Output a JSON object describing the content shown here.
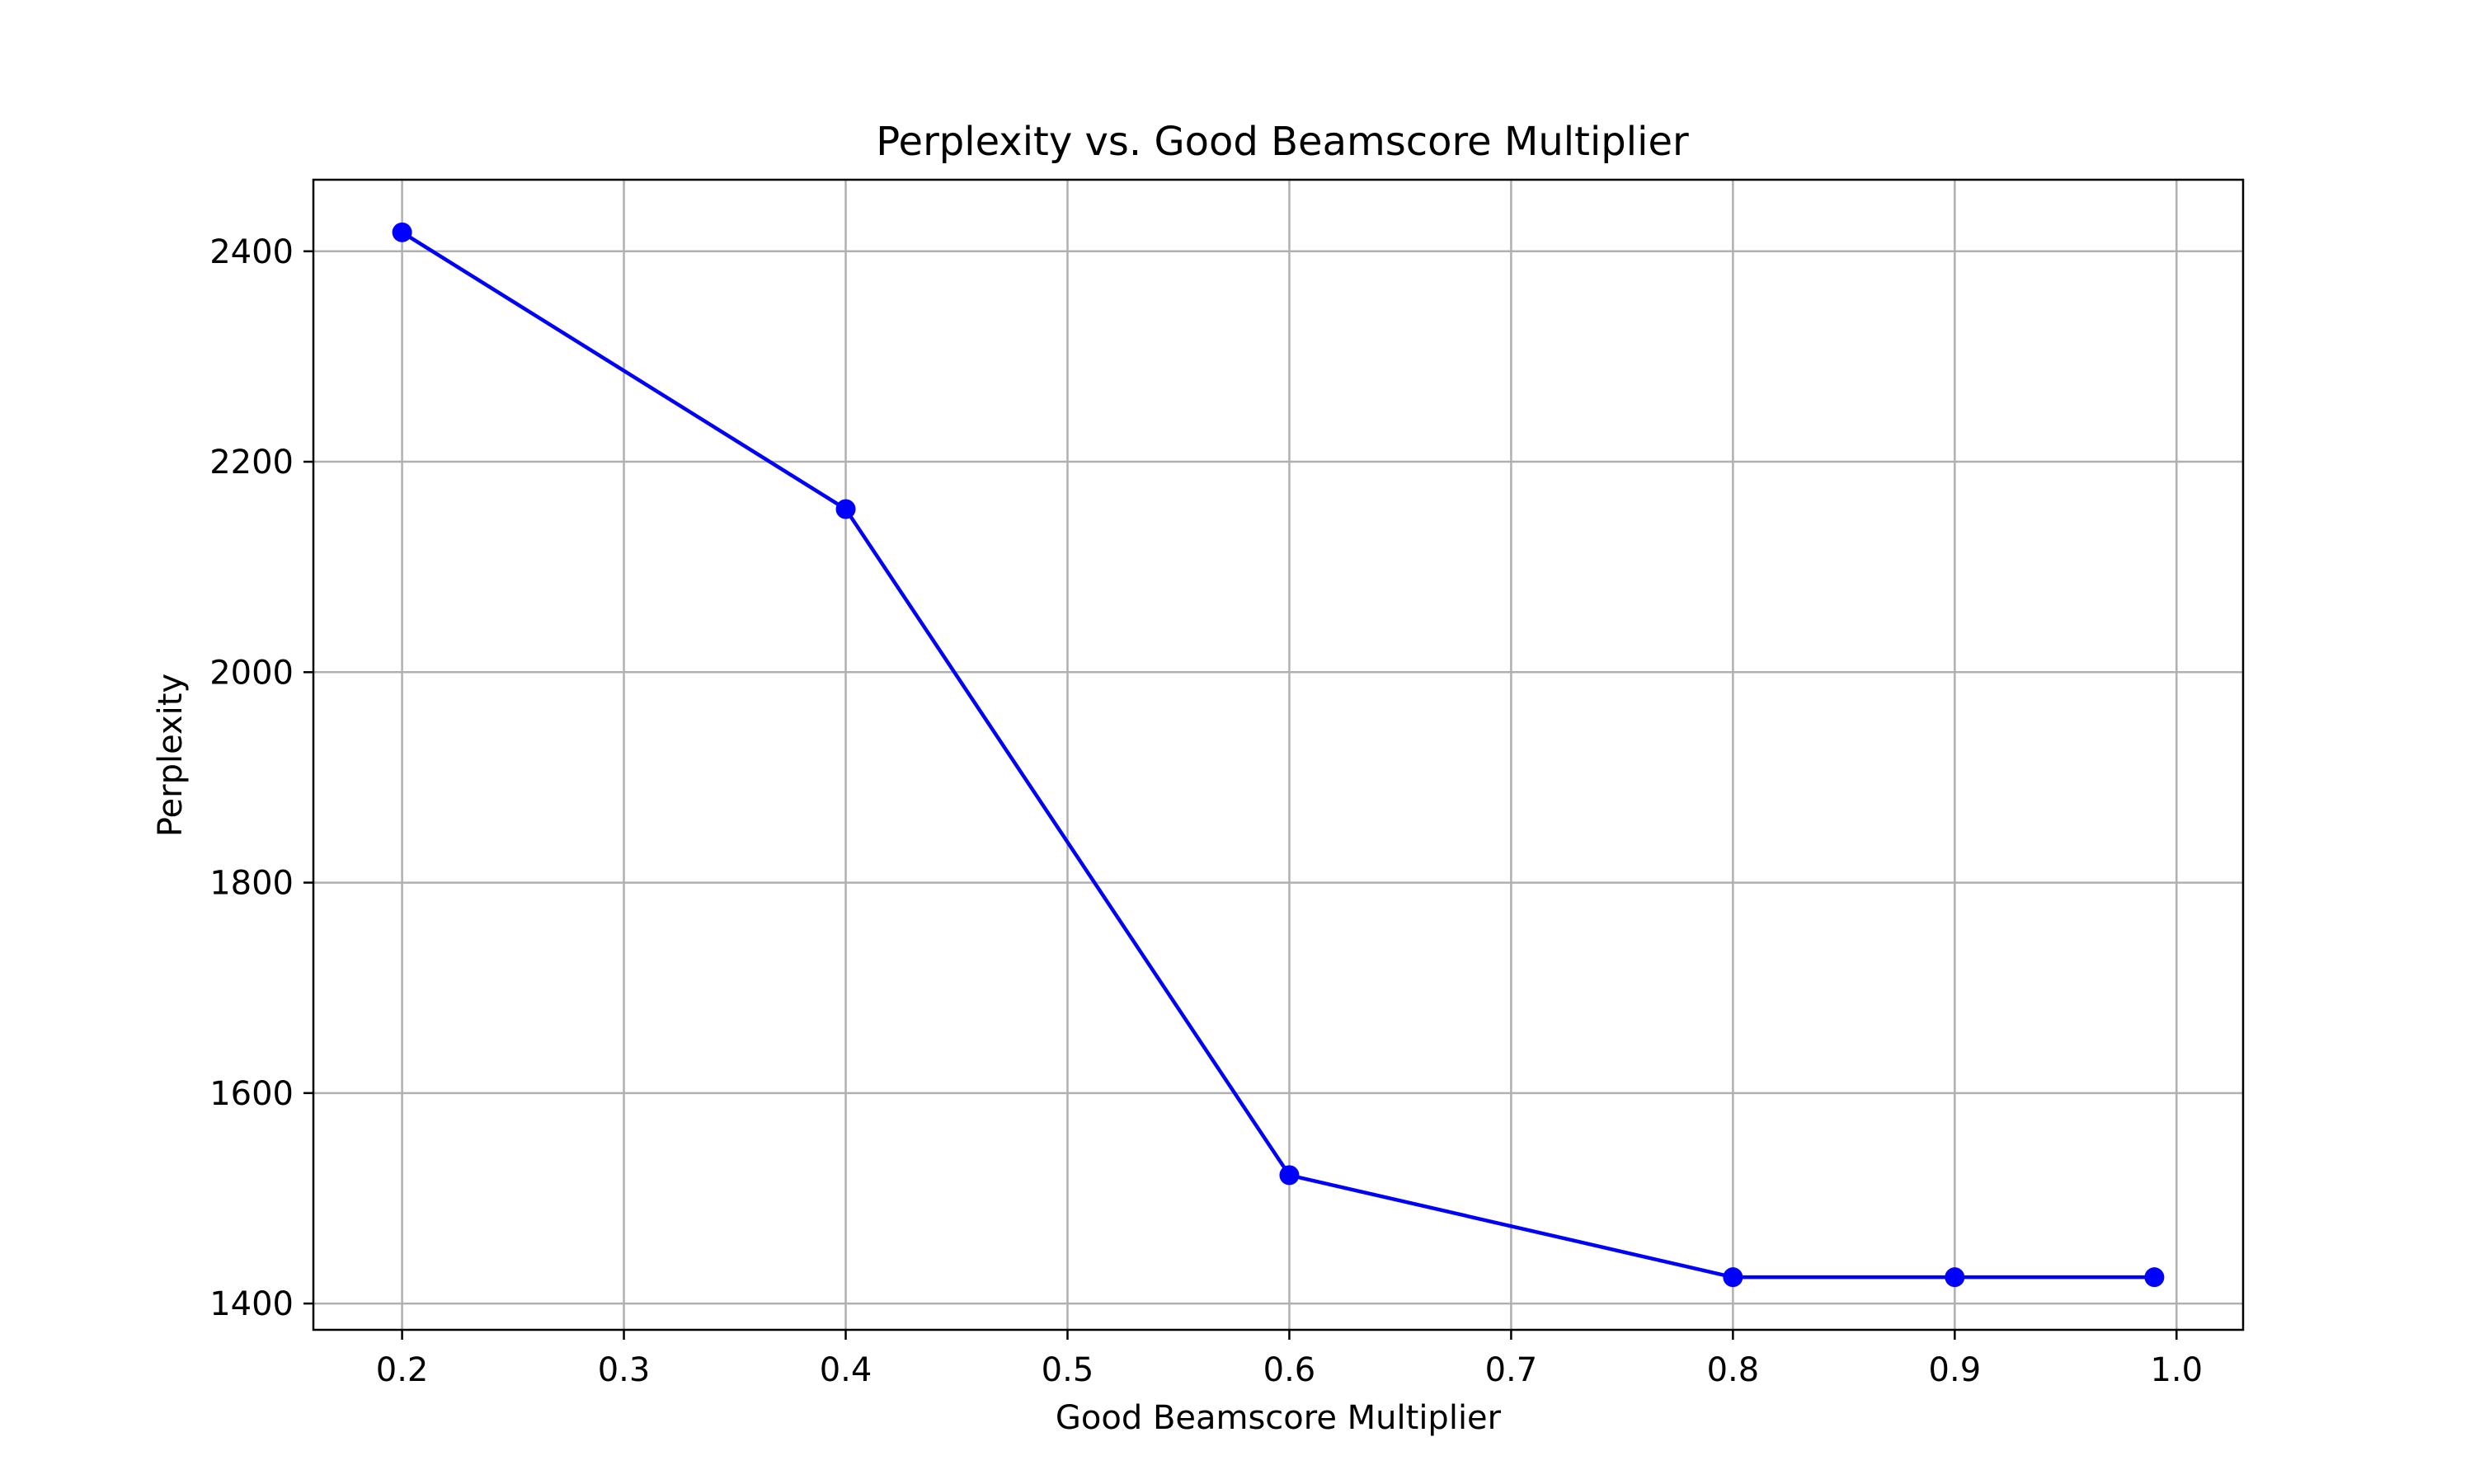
{
  "chart_data": {
    "type": "line",
    "title": "Perplexity vs. Good Beamscore Multiplier",
    "xlabel": "Good Beamscore Multiplier",
    "ylabel": "Perplexity",
    "xlim": [
      0.16,
      1.03
    ],
    "ylim": [
      1375,
      2468
    ],
    "grid": true,
    "xticks": [
      0.2,
      0.3,
      0.4,
      0.5,
      0.6,
      0.7,
      0.8,
      0.9,
      1.0
    ],
    "xtick_labels": [
      "0.2",
      "0.3",
      "0.4",
      "0.5",
      "0.6",
      "0.7",
      "0.8",
      "0.9",
      "1.0"
    ],
    "yticks": [
      1400,
      1600,
      1800,
      2000,
      2200,
      2400
    ],
    "ytick_labels": [
      "1400",
      "1600",
      "1800",
      "2000",
      "2200",
      "2400"
    ],
    "series": [
      {
        "color": "#0000ff",
        "marker": "circle",
        "x": [
          0.2,
          0.4,
          0.6,
          0.8,
          0.9,
          0.99
        ],
        "y": [
          2418,
          2155,
          1522,
          1425,
          1425,
          1425
        ]
      }
    ]
  }
}
